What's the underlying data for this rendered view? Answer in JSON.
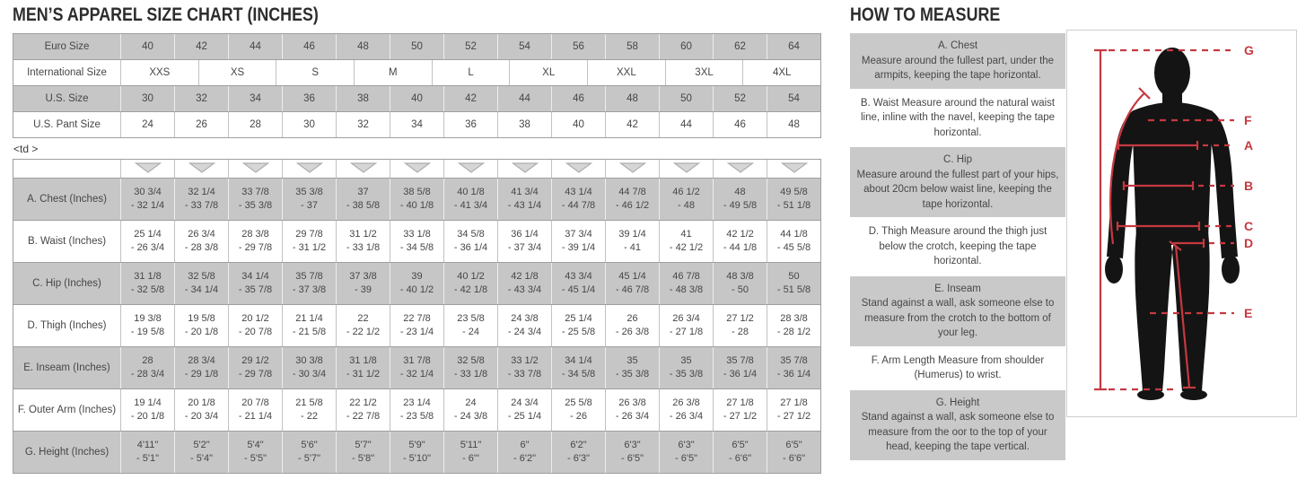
{
  "colors": {
    "accent_red": "#c63940",
    "shade_gray": "#c6c6c6",
    "border_gray": "#9f9f9f"
  },
  "size_chart": {
    "title": "MEN’S APPAREL SIZE CHART (INCHES)",
    "stray_text": "<td >",
    "conversion_table": {
      "rows": [
        {
          "label": "Euro Size",
          "shade": "gray",
          "values": [
            "40",
            "42",
            "44",
            "46",
            "48",
            "50",
            "52",
            "54",
            "56",
            "58",
            "60",
            "62",
            "64"
          ]
        },
        {
          "label": "International Size",
          "shade": "white",
          "values": [
            "XXS",
            "XS",
            "S",
            "M",
            "L",
            "XL",
            "XXL",
            "3XL",
            "4XL"
          ]
        },
        {
          "label": "U.S. Size",
          "shade": "gray",
          "values": [
            "30",
            "32",
            "34",
            "36",
            "38",
            "40",
            "42",
            "44",
            "46",
            "48",
            "50",
            "52",
            "54"
          ]
        },
        {
          "label": "U.S. Pant Size",
          "shade": "white",
          "values": [
            "24",
            "26",
            "28",
            "30",
            "32",
            "34",
            "36",
            "38",
            "40",
            "42",
            "44",
            "46",
            "48"
          ]
        }
      ]
    },
    "measurement_table": {
      "arrow_icon": "dropdown-arrow-icon",
      "arrow_count": 13,
      "rows": [
        {
          "label": "A. Chest (Inches)",
          "shade": "gray",
          "cells": [
            [
              "30 3/4",
              "- 32 1/4"
            ],
            [
              "32 1/4",
              "- 33 7/8"
            ],
            [
              "33 7/8",
              "- 35 3/8"
            ],
            [
              "35 3/8",
              "- 37"
            ],
            [
              "37",
              "- 38 5/8"
            ],
            [
              "38 5/8",
              "- 40 1/8"
            ],
            [
              "40 1/8",
              "- 41 3/4"
            ],
            [
              "41 3/4",
              "- 43 1/4"
            ],
            [
              "43 1/4",
              "- 44 7/8"
            ],
            [
              "44 7/8",
              "- 46 1/2"
            ],
            [
              "46 1/2",
              "- 48"
            ],
            [
              "48",
              "- 49 5/8"
            ],
            [
              "49 5/8",
              "- 51 1/8"
            ]
          ]
        },
        {
          "label": "B. Waist (Inches)",
          "shade": "white",
          "cells": [
            [
              "25 1/4",
              "- 26 3/4"
            ],
            [
              "26 3/4",
              "- 28 3/8"
            ],
            [
              "28 3/8",
              "- 29 7/8"
            ],
            [
              "29 7/8",
              "- 31 1/2"
            ],
            [
              "31 1/2",
              "- 33 1/8"
            ],
            [
              "33 1/8",
              "- 34 5/8"
            ],
            [
              "34 5/8",
              "- 36 1/4"
            ],
            [
              "36 1/4",
              "- 37 3/4"
            ],
            [
              "37 3/4",
              "- 39 1/4"
            ],
            [
              "39 1/4",
              "- 41"
            ],
            [
              "41",
              "- 42 1/2"
            ],
            [
              "42 1/2",
              "- 44 1/8"
            ],
            [
              "44 1/8",
              "- 45 5/8"
            ]
          ]
        },
        {
          "label": "C. Hip (Inches)",
          "shade": "gray",
          "cells": [
            [
              "31 1/8",
              "- 32 5/8"
            ],
            [
              "32 5/8",
              "- 34 1/4"
            ],
            [
              "34 1/4",
              "- 35 7/8"
            ],
            [
              "35 7/8",
              "- 37 3/8"
            ],
            [
              "37 3/8",
              "- 39"
            ],
            [
              "39",
              "- 40 1/2"
            ],
            [
              "40 1/2",
              "- 42 1/8"
            ],
            [
              "42 1/8",
              "- 43 3/4"
            ],
            [
              "43 3/4",
              "- 45 1/4"
            ],
            [
              "45 1/4",
              "- 46 7/8"
            ],
            [
              "46 7/8",
              "- 48 3/8"
            ],
            [
              "48 3/8",
              "- 50"
            ],
            [
              "50",
              "- 51 5/8"
            ]
          ]
        },
        {
          "label": "D. Thigh (Inches)",
          "shade": "white",
          "cells": [
            [
              "19 3/8",
              "- 19 5/8"
            ],
            [
              "19 5/8",
              "- 20 1/8"
            ],
            [
              "20 1/2",
              "- 20 7/8"
            ],
            [
              "21 1/4",
              "- 21 5/8"
            ],
            [
              "22",
              "- 22 1/2"
            ],
            [
              "22 7/8",
              "- 23 1/4"
            ],
            [
              "23 5/8",
              "- 24"
            ],
            [
              "24 3/8",
              "- 24 3/4"
            ],
            [
              "25 1/4",
              "- 25 5/8"
            ],
            [
              "26",
              "- 26 3/8"
            ],
            [
              "26 3/4",
              "- 27 1/8"
            ],
            [
              "27 1/2",
              "- 28"
            ],
            [
              "28 3/8",
              "- 28 1/2"
            ]
          ]
        },
        {
          "label": "E. Inseam (Inches)",
          "shade": "gray",
          "cells": [
            [
              "28",
              "- 28 3/4"
            ],
            [
              "28 3/4",
              "- 29 1/8"
            ],
            [
              "29 1/2",
              "- 29 7/8"
            ],
            [
              "30 3/8",
              "- 30 3/4"
            ],
            [
              "31 1/8",
              "- 31 1/2"
            ],
            [
              "31 7/8",
              "- 32 1/4"
            ],
            [
              "32 5/8",
              "- 33 1/8"
            ],
            [
              "33 1/2",
              "- 33 7/8"
            ],
            [
              "34 1/4",
              "- 34 5/8"
            ],
            [
              "35",
              "- 35 3/8"
            ],
            [
              "35",
              "- 35 3/8"
            ],
            [
              "35 7/8",
              "- 36 1/4"
            ],
            [
              "35 7/8",
              "- 36 1/4"
            ]
          ]
        },
        {
          "label": "F. Outer Arm (Inches)",
          "shade": "white",
          "cells": [
            [
              "19 1/4",
              "- 20 1/8"
            ],
            [
              "20 1/8",
              "- 20 3/4"
            ],
            [
              "20 7/8",
              "- 21 1/4"
            ],
            [
              "21 5/8",
              "- 22"
            ],
            [
              "22 1/2",
              "- 22 7/8"
            ],
            [
              "23 1/4",
              "- 23 5/8"
            ],
            [
              "24",
              "- 24 3/8"
            ],
            [
              "24 3/4",
              "- 25 1/4"
            ],
            [
              "25 5/8",
              "- 26"
            ],
            [
              "26 3/8",
              "- 26 3/4"
            ],
            [
              "26 3/8",
              "- 26 3/4"
            ],
            [
              "27 1/8",
              "- 27 1/2"
            ],
            [
              "27 1/8",
              "- 27 1/2"
            ]
          ]
        },
        {
          "label": "G. Height (Inches)",
          "shade": "gray",
          "cells": [
            [
              "4'11\"",
              "- 5'1\""
            ],
            [
              "5'2\"",
              "- 5'4\""
            ],
            [
              "5'4\"",
              "- 5'5\""
            ],
            [
              "5'6\"",
              "- 5'7\""
            ],
            [
              "5'7\"",
              "- 5'8\""
            ],
            [
              "5'9\"",
              "- 5'10\""
            ],
            [
              "5'11\"",
              "- 6'\""
            ],
            [
              "6\"",
              "- 6'2\""
            ],
            [
              "6'2\"",
              "- 6'3\""
            ],
            [
              "6'3\"",
              "- 6'5\""
            ],
            [
              "6'3\"",
              "- 6'5\""
            ],
            [
              "6'5\"",
              "- 6'6\""
            ],
            [
              "6'5\"",
              "- 6'6\""
            ]
          ]
        }
      ]
    }
  },
  "how_to_measure": {
    "title": "HOW TO MEASURE",
    "blocks": [
      {
        "title": "A. Chest",
        "text": "Measure around the fullest part, under the armpits, keeping the tape horizontal.",
        "shade": "gray"
      },
      {
        "title": "",
        "text": "B. Waist Measure around the natural waist line, inline with the navel, keeping the tape horizontal.",
        "shade": "white"
      },
      {
        "title": "C. Hip",
        "text": "Measure around the fullest part of your hips, about 20cm below waist line, keeping the tape horizontal.",
        "shade": "gray"
      },
      {
        "title": "",
        "text": "D. Thigh Measure around the thigh just below the crotch, keeping the tape horizontal.",
        "shade": "white"
      },
      {
        "title": "E. Inseam",
        "text": "Stand against a wall, ask someone else to measure from the crotch to the bottom of your leg.",
        "shade": "gray"
      },
      {
        "title": "",
        "text": "F. Arm Length Measure from shoulder (Humerus) to wrist.",
        "shade": "white"
      },
      {
        "title": "G. Height",
        "text": "Stand against a wall, ask someone else to measure from the oor to the top of your head, keeping the tape vertical.",
        "shade": "gray"
      }
    ],
    "diagram": {
      "labels": [
        "G",
        "F",
        "A",
        "B",
        "C",
        "D",
        "E"
      ]
    }
  }
}
